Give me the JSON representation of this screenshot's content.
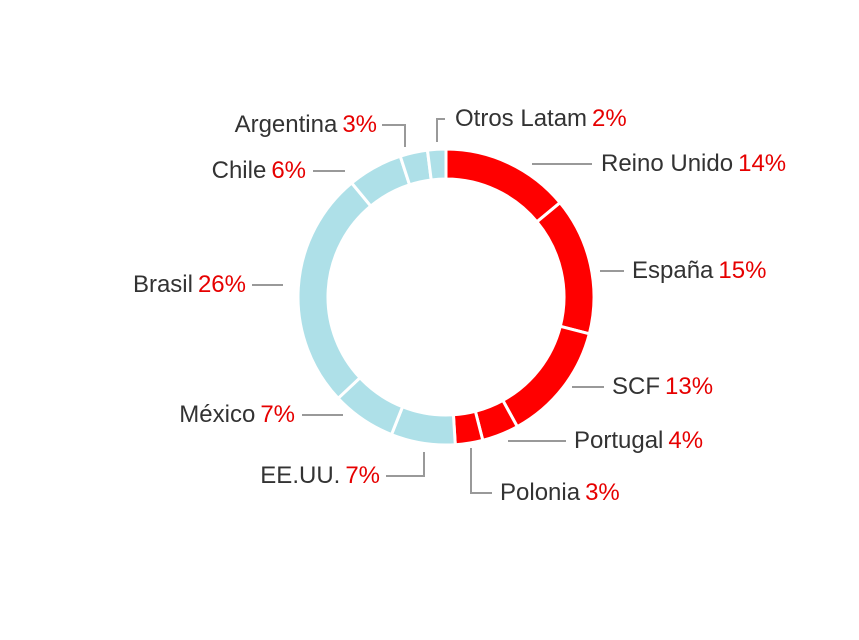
{
  "chart_data": {
    "type": "pie",
    "variant": "donut",
    "slices": [
      {
        "label": "Reino Unido",
        "value": 14,
        "value_label": "14%",
        "group": "europe"
      },
      {
        "label": "España",
        "value": 15,
        "value_label": "15%",
        "group": "europe"
      },
      {
        "label": "SCF",
        "value": 13,
        "value_label": "13%",
        "group": "europe"
      },
      {
        "label": "Portugal",
        "value": 4,
        "value_label": "4%",
        "group": "europe"
      },
      {
        "label": "Polonia",
        "value": 3,
        "value_label": "3%",
        "group": "europe"
      },
      {
        "label": "EE.UU.",
        "value": 7,
        "value_label": "7%",
        "group": "americas"
      },
      {
        "label": "México",
        "value": 7,
        "value_label": "7%",
        "group": "americas"
      },
      {
        "label": "Brasil",
        "value": 26,
        "value_label": "26%",
        "group": "americas"
      },
      {
        "label": "Chile",
        "value": 6,
        "value_label": "6%",
        "group": "americas"
      },
      {
        "label": "Argentina",
        "value": 3,
        "value_label": "3%",
        "group": "americas"
      },
      {
        "label": "Otros Latam",
        "value": 2,
        "value_label": "2%",
        "group": "americas"
      }
    ],
    "colors": {
      "europe": "#ff0000",
      "americas": "#aee0e8",
      "separator": "#ffffff",
      "leader_line": "#999999",
      "label_text": "#333333",
      "percent_text": "#e60000"
    },
    "start_angle": "top, clockwise"
  }
}
